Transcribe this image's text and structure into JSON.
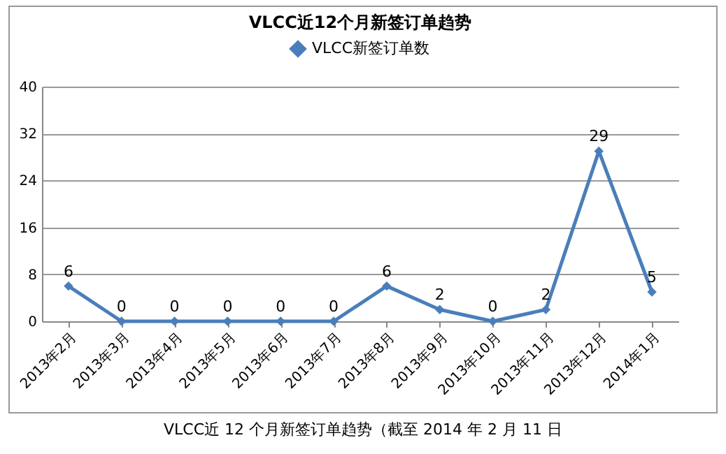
{
  "chart_data": {
    "type": "line",
    "title": "VLCC近12个月新签订单趋势",
    "categories": [
      "2013年2月",
      "2013年3月",
      "2013年4月",
      "2013年5月",
      "2013年6月",
      "2013年7月",
      "2013年8月",
      "2013年9月",
      "2013年10月",
      "2013年11月",
      "2013年12月",
      "2014年1月"
    ],
    "series": [
      {
        "name": "VLCC新签订单数",
        "color": "#4a7ebb",
        "values": [
          6,
          0,
          0,
          0,
          0,
          0,
          6,
          2,
          0,
          2,
          29,
          5
        ]
      }
    ],
    "ylim": [
      0,
      40
    ],
    "yticks": [
      0,
      8,
      16,
      24,
      32,
      40
    ],
    "grid": "y",
    "legend": "top",
    "marker": "diamond",
    "line_style": "solid",
    "data_labels": true,
    "annotations": [
      "VLCC近 12 个月新签订单趋势（截至 2014 年 2 月 11 日"
    ]
  }
}
